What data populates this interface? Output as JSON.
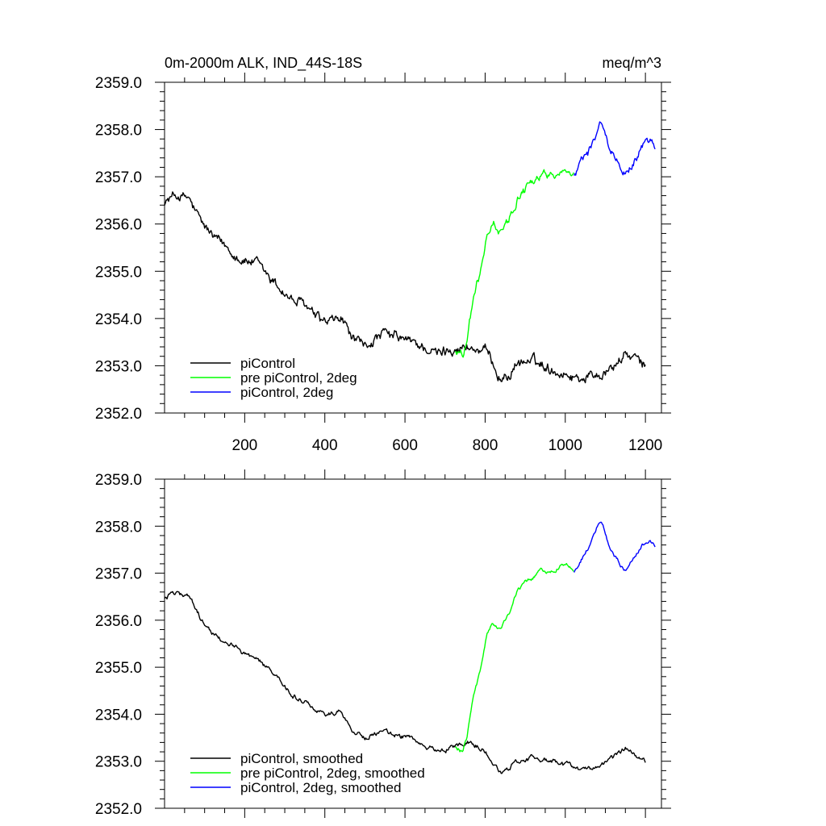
{
  "chart_data": [
    {
      "type": "line",
      "title": "0m-2000m ALK, IND_44S-18S",
      "title_right": "meq/m^3",
      "xlim": [
        0,
        1240
      ],
      "ylim": [
        2352.0,
        2359.0
      ],
      "x_ticks": [
        200,
        400,
        600,
        800,
        1000,
        1200
      ],
      "x_tick_labels": [
        "200",
        "400",
        "600",
        "800",
        "1000",
        "1200"
      ],
      "y_ticks": [
        2352.0,
        2353.0,
        2354.0,
        2355.0,
        2356.0,
        2357.0,
        2358.0,
        2359.0
      ],
      "y_tick_labels": [
        "2352.0",
        "2353.0",
        "2354.0",
        "2355.0",
        "2356.0",
        "2357.0",
        "2358.0",
        "2359.0"
      ],
      "show_x_tick_labels": true,
      "legend_placement": "bottom-left",
      "series": [
        {
          "name": "piControl",
          "color": "#000000",
          "noise": 0.16,
          "x": [
            0,
            30,
            60,
            90,
            120,
            160,
            200,
            240,
            280,
            320,
            360,
            400,
            440,
            470,
            500,
            550,
            600,
            640,
            680,
            720,
            760,
            800,
            840,
            880,
            920,
            960,
            1000,
            1040,
            1080,
            1120,
            1150,
            1170,
            1200
          ],
          "values": [
            2356.5,
            2356.6,
            2356.5,
            2356.0,
            2355.7,
            2355.5,
            2355.3,
            2355.1,
            2354.8,
            2354.4,
            2354.2,
            2354.0,
            2354.1,
            2353.6,
            2353.5,
            2353.6,
            2353.5,
            2353.4,
            2353.2,
            2353.3,
            2353.4,
            2353.2,
            2352.7,
            2353.0,
            2353.1,
            2353.0,
            2352.9,
            2352.8,
            2352.9,
            2353.1,
            2353.3,
            2353.2,
            2353.0
          ]
        },
        {
          "name": "pre piControl, 2deg",
          "color": "#00ff00",
          "noise": 0.13,
          "x": [
            725,
            745,
            755,
            770,
            790,
            805,
            820,
            840,
            860,
            880,
            900,
            920,
            940,
            960,
            980,
            1000,
            1022
          ],
          "values": [
            2353.3,
            2353.2,
            2353.5,
            2354.3,
            2355.0,
            2355.7,
            2355.9,
            2355.8,
            2356.1,
            2356.6,
            2356.8,
            2356.9,
            2357.1,
            2357.0,
            2357.1,
            2357.2,
            2357.1
          ]
        },
        {
          "name": "piControl, 2deg",
          "color": "#0000ff",
          "noise": 0.13,
          "x": [
            1022,
            1040,
            1060,
            1080,
            1090,
            1110,
            1130,
            1150,
            1170,
            1190,
            1210,
            1225
          ],
          "values": [
            2357.0,
            2357.3,
            2357.6,
            2358.0,
            2358.1,
            2357.6,
            2357.3,
            2357.0,
            2357.3,
            2357.6,
            2357.7,
            2357.6
          ]
        }
      ]
    },
    {
      "type": "line",
      "title": "",
      "xlim": [
        0,
        1240
      ],
      "ylim": [
        2352.0,
        2359.0
      ],
      "x_ticks": [
        200,
        400,
        600,
        800,
        1000,
        1200
      ],
      "y_ticks": [
        2352.0,
        2353.0,
        2354.0,
        2355.0,
        2356.0,
        2357.0,
        2358.0,
        2359.0
      ],
      "y_tick_labels": [
        "2352.0",
        "2353.0",
        "2354.0",
        "2355.0",
        "2356.0",
        "2357.0",
        "2358.0",
        "2359.0"
      ],
      "show_x_tick_labels": false,
      "legend_placement": "bottom-left",
      "series": [
        {
          "name": "piControl, smoothed",
          "color": "#000000",
          "noise": 0.07,
          "x": [
            0,
            30,
            60,
            90,
            120,
            160,
            200,
            240,
            280,
            320,
            360,
            400,
            440,
            470,
            500,
            550,
            600,
            640,
            680,
            720,
            760,
            800,
            840,
            880,
            920,
            960,
            1000,
            1040,
            1080,
            1120,
            1150,
            1170,
            1200
          ],
          "values": [
            2356.5,
            2356.6,
            2356.5,
            2356.0,
            2355.7,
            2355.5,
            2355.3,
            2355.1,
            2354.8,
            2354.4,
            2354.2,
            2354.0,
            2354.1,
            2353.6,
            2353.5,
            2353.6,
            2353.5,
            2353.4,
            2353.2,
            2353.3,
            2353.4,
            2353.2,
            2352.7,
            2353.0,
            2353.1,
            2353.0,
            2352.9,
            2352.8,
            2352.9,
            2353.1,
            2353.3,
            2353.2,
            2353.0
          ]
        },
        {
          "name": "pre piControl, 2deg, smoothed",
          "color": "#00ff00",
          "noise": 0.06,
          "x": [
            725,
            745,
            755,
            770,
            790,
            805,
            820,
            840,
            860,
            880,
            900,
            920,
            940,
            960,
            980,
            1000,
            1022
          ],
          "values": [
            2353.3,
            2353.2,
            2353.5,
            2354.3,
            2355.0,
            2355.7,
            2355.9,
            2355.8,
            2356.1,
            2356.6,
            2356.8,
            2356.9,
            2357.1,
            2357.0,
            2357.1,
            2357.2,
            2357.1
          ]
        },
        {
          "name": "piControl, 2deg, smoothed",
          "color": "#0000ff",
          "noise": 0.06,
          "x": [
            1022,
            1040,
            1060,
            1080,
            1090,
            1110,
            1130,
            1150,
            1170,
            1190,
            1210,
            1225
          ],
          "values": [
            2357.0,
            2357.3,
            2357.6,
            2358.0,
            2358.1,
            2357.6,
            2357.3,
            2357.0,
            2357.3,
            2357.6,
            2357.7,
            2357.6
          ]
        }
      ]
    }
  ]
}
